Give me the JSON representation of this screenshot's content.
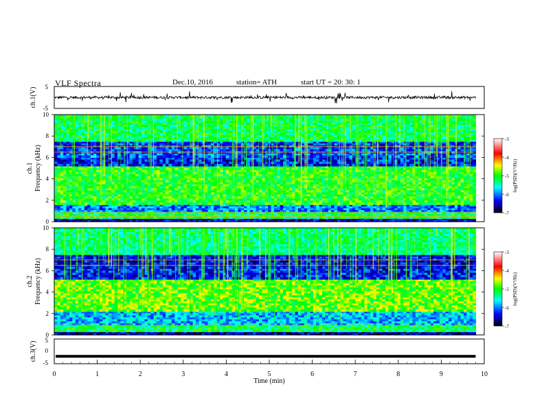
{
  "header": {
    "title": "VLF  Spectra",
    "date": "Dec.10, 2016",
    "station": "station= ATH",
    "start_ut": "start  UT  =   20: 30: 1"
  },
  "chart_data": [
    {
      "type": "line",
      "panel": "ch1-waveform",
      "ylabel": "ch.1(V)",
      "ylim": [
        -5,
        5
      ],
      "yticks": [
        "5",
        "-5"
      ],
      "xlim": [
        0,
        10
      ],
      "series": [
        {
          "values_desc": "noisy trace near 0 V",
          "mean": 0
        }
      ],
      "color": "#000000"
    },
    {
      "type": "heatmap",
      "panel": "ch1-spectrogram",
      "ylabel": "ch.1\nFrequency (kHz)",
      "ylabel_lines": [
        "ch.1",
        "Frequency  (kHz)"
      ],
      "ylim": [
        0,
        10
      ],
      "yticks": [
        "0",
        "2",
        "4",
        "6",
        "8",
        "10"
      ],
      "xlim": [
        0,
        9.8
      ],
      "bands": [
        {
          "from_khz": 0,
          "to_khz": 0.3,
          "level": -6.5
        },
        {
          "from_khz": 0.3,
          "to_khz": 0.9,
          "level": -5.2
        },
        {
          "from_khz": 0.9,
          "to_khz": 1.6,
          "level": -6.0
        },
        {
          "from_khz": 1.6,
          "to_khz": 5.2,
          "level": -5.0
        },
        {
          "from_khz": 5.2,
          "to_khz": 6.0,
          "level": -6.3
        },
        {
          "from_khz": 6.0,
          "to_khz": 6.4,
          "level": -6.1
        },
        {
          "from_khz": 6.4,
          "to_khz": 7.5,
          "level": -6.2
        },
        {
          "from_khz": 7.5,
          "to_khz": 10,
          "level": -5.2
        }
      ],
      "colorbar": {
        "label": "log(PSD)(V²/Hz)",
        "range": [
          -7,
          -3
        ],
        "ticks": [
          "-3",
          "-4",
          "-5",
          "-6",
          "-7"
        ]
      }
    },
    {
      "type": "heatmap",
      "panel": "ch2-spectrogram",
      "ylabel": "ch.2\nFrequency (kHz)",
      "ylabel_lines": [
        "ch.2",
        "Frequency  (kHz)"
      ],
      "ylim": [
        0,
        10
      ],
      "yticks": [
        "0",
        "2",
        "4",
        "6",
        "8",
        "10"
      ],
      "xlim": [
        0,
        9.8
      ],
      "bands": [
        {
          "from_khz": 0,
          "to_khz": 0.3,
          "level": -6.5
        },
        {
          "from_khz": 0.3,
          "to_khz": 0.9,
          "level": -5.2
        },
        {
          "from_khz": 0.9,
          "to_khz": 2.2,
          "level": -5.8
        },
        {
          "from_khz": 2.2,
          "to_khz": 5.2,
          "level": -4.8
        },
        {
          "from_khz": 5.2,
          "to_khz": 6.2,
          "level": -6.3
        },
        {
          "from_khz": 6.2,
          "to_khz": 7.5,
          "level": -6.4
        },
        {
          "from_khz": 7.5,
          "to_khz": 10,
          "level": -5.3
        }
      ],
      "colorbar": {
        "label": "log(PSD)(V²/Hz)",
        "range": [
          -7,
          -3
        ],
        "ticks": [
          "-3",
          "-4",
          "-5",
          "-6",
          "-7"
        ]
      }
    },
    {
      "type": "line",
      "panel": "ch3-waveform",
      "ylabel": "ch.3(V)",
      "ylim": [
        -5,
        5
      ],
      "yticks": [
        "5",
        "0",
        "-5"
      ],
      "xlim": [
        0,
        10
      ],
      "xlabel": "Time  (min)",
      "xticks": [
        "0",
        "1",
        "2",
        "3",
        "4",
        "5",
        "6",
        "7",
        "8",
        "9",
        "10"
      ],
      "series": [
        {
          "values_desc": "flat trace",
          "mean": -2
        }
      ],
      "color": "#000000"
    }
  ],
  "colors": {
    "axis": "#000000",
    "colormap": [
      "#000000",
      "#0000ff",
      "#00ffff",
      "#00ff00",
      "#ffff00",
      "#ff0000",
      "#ffffff"
    ]
  }
}
